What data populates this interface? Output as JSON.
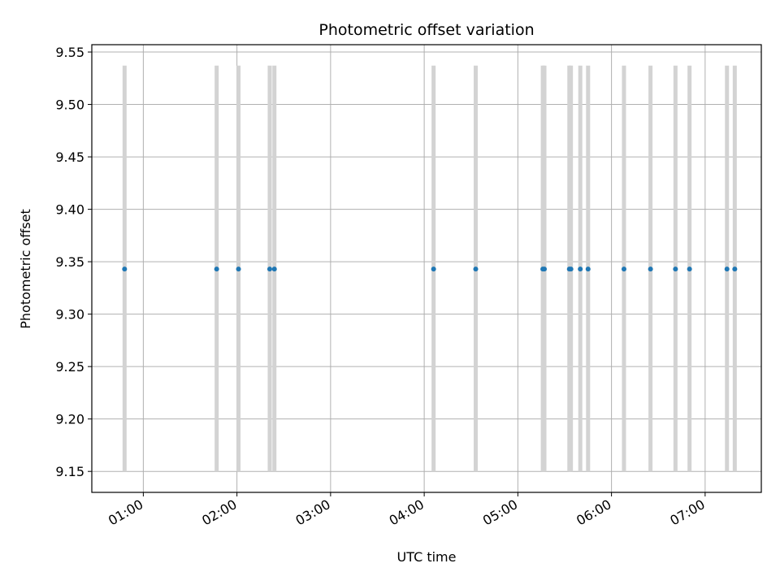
{
  "chart_data": {
    "type": "scatter",
    "title": "Photometric offset variation",
    "xlabel": "UTC time",
    "ylabel": "Photometric offset",
    "x_axis_type": "time",
    "xlim": [
      "00:27",
      "07:36"
    ],
    "ylim": [
      9.13,
      9.557
    ],
    "y_ticks": [
      "9.15",
      "9.20",
      "9.25",
      "9.30",
      "9.35",
      "9.40",
      "9.45",
      "9.50",
      "9.55"
    ],
    "x_ticks": [
      "01:00",
      "02:00",
      "03:00",
      "04:00",
      "05:00",
      "06:00",
      "07:00"
    ],
    "grid": true,
    "point_color": "#1f77b4",
    "band_color": "#d3d3d3",
    "band_range": [
      9.15,
      9.537
    ],
    "points": [
      {
        "x": "00:48",
        "y": 9.343
      },
      {
        "x": "01:47",
        "y": 9.343
      },
      {
        "x": "02:01",
        "y": 9.343
      },
      {
        "x": "02:21",
        "y": 9.343
      },
      {
        "x": "02:24",
        "y": 9.343
      },
      {
        "x": "04:06",
        "y": 9.343
      },
      {
        "x": "04:33",
        "y": 9.343
      },
      {
        "x": "05:16",
        "y": 9.343
      },
      {
        "x": "05:17",
        "y": 9.343
      },
      {
        "x": "05:33",
        "y": 9.343
      },
      {
        "x": "05:34",
        "y": 9.343
      },
      {
        "x": "05:40",
        "y": 9.343
      },
      {
        "x": "05:45",
        "y": 9.343
      },
      {
        "x": "06:08",
        "y": 9.343
      },
      {
        "x": "06:25",
        "y": 9.343
      },
      {
        "x": "06:41",
        "y": 9.343
      },
      {
        "x": "06:50",
        "y": 9.343
      },
      {
        "x": "07:14",
        "y": 9.343
      },
      {
        "x": "07:19",
        "y": 9.343
      }
    ]
  }
}
